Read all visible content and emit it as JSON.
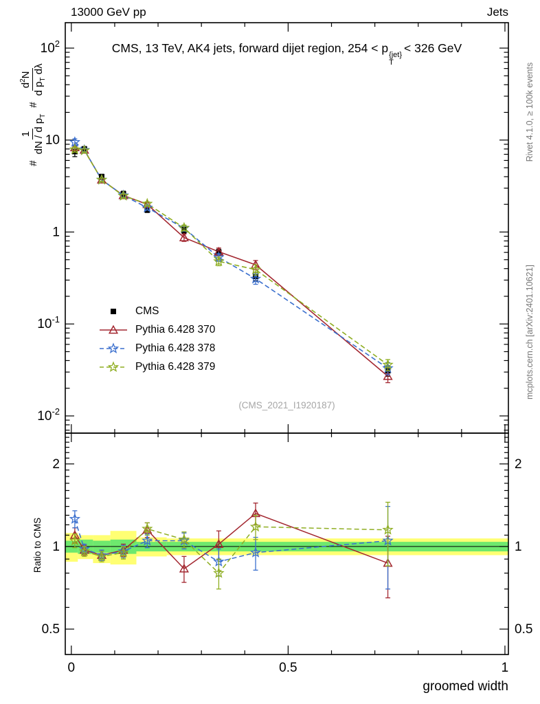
{
  "header": {
    "left": "13000 GeV pp",
    "right": "Jets"
  },
  "title": {
    "pre": "CMS, 13 TeV, AK4 jets, forward dijet region, 254 < p",
    "sup": "{jet}",
    "sub": "T",
    "post": "< 326 GeV"
  },
  "ylabel": {
    "hash1": "#",
    "frac1": {
      "num": "1",
      "den_pre": "dN / d p",
      "den_sub": "T"
    },
    "hash2": "#",
    "frac2": {
      "num_pre": "d",
      "num_sup": "2",
      "num_post": "N",
      "den_pre": "d p",
      "den_sub": "T",
      "den_post": " dλ"
    }
  },
  "ratio_ylabel": "Ratio to CMS",
  "xlabel": "groomed width",
  "watermark": "(CMS_2021_I1920187)",
  "captions": {
    "right_top": "Rivet 4.1.0, ≥ 100k events",
    "right_bottom": "mcplots.cern.ch [arXiv:2401.10621]"
  },
  "chart_data": {
    "type": "line",
    "title": "CMS, 13 TeV, AK4 jets, forward dijet region, 254 < pT{jet} < 326 GeV",
    "xlabel": "groomed width",
    "ylabel": "1/(dN/dpT) d2N/(dpT dlambda)",
    "xlim": [
      -0.014,
      1.008
    ],
    "x_major": [
      0,
      0.5,
      1
    ],
    "xtick_labels": [
      "0",
      "0.5",
      "1"
    ],
    "x_minor_step": 0.1,
    "main_ylog": true,
    "main_ylim": [
      0.0065,
      189
    ],
    "main_yticks": [
      100,
      10,
      1,
      0.1,
      0.01
    ],
    "ratio_ylog": true,
    "ratio_ylim": [
      0.404,
      2.59
    ],
    "ratio_yticks": [
      2,
      1,
      0.5
    ],
    "ratio_ref_line": 1,
    "x": [
      0.008,
      0.03,
      0.07,
      0.12,
      0.175,
      0.26,
      0.34,
      0.425,
      0.73
    ],
    "series": [
      {
        "name": "CMS",
        "color": "#000000",
        "marker": "square",
        "line": "none",
        "y": [
          7.5,
          8.0,
          4.0,
          2.6,
          1.75,
          1.05,
          0.6,
          0.33,
          0.031
        ],
        "yerr": [
          0.9,
          0.5,
          0.25,
          0.18,
          0.12,
          0.08,
          0.05,
          0.035,
          0.004
        ],
        "ratio": null,
        "ratio_err": null
      },
      {
        "name": "Pythia 6.428 370",
        "color": "#a32730",
        "marker": "triangle",
        "line": "solid",
        "y": [
          8.3,
          7.8,
          3.7,
          2.5,
          2.0,
          0.87,
          0.61,
          0.44,
          0.027
        ],
        "yerr": [
          0.5,
          0.3,
          0.15,
          0.12,
          0.1,
          0.08,
          0.06,
          0.05,
          0.004
        ],
        "ratio": [
          1.1,
          0.97,
          0.93,
          0.97,
          1.15,
          0.83,
          1.02,
          1.32,
          0.87
        ],
        "ratio_err": [
          0.07,
          0.04,
          0.04,
          0.05,
          0.07,
          0.09,
          0.12,
          0.12,
          0.22
        ]
      },
      {
        "name": "Pythia 6.428 378",
        "color": "#3a6fce",
        "marker": "star",
        "line": "dashed",
        "y": [
          9.5,
          7.8,
          3.7,
          2.5,
          1.84,
          1.1,
          0.53,
          0.31,
          0.033
        ],
        "yerr": [
          0.8,
          0.3,
          0.15,
          0.12,
          0.1,
          0.08,
          0.05,
          0.04,
          0.005
        ],
        "ratio": [
          1.26,
          0.98,
          0.93,
          0.96,
          1.05,
          1.05,
          0.88,
          0.95,
          1.05
        ],
        "ratio_err": [
          0.09,
          0.04,
          0.04,
          0.05,
          0.06,
          0.07,
          0.1,
          0.13,
          0.35
        ]
      },
      {
        "name": "Pythia 6.428 379",
        "color": "#8fae22",
        "marker": "star",
        "line": "dashed",
        "y": [
          7.9,
          7.7,
          3.7,
          2.47,
          2.03,
          1.11,
          0.48,
          0.39,
          0.036
        ],
        "yerr": [
          0.5,
          0.3,
          0.15,
          0.12,
          0.1,
          0.08,
          0.05,
          0.05,
          0.005
        ],
        "ratio": [
          1.05,
          0.96,
          0.92,
          0.95,
          1.16,
          1.06,
          0.8,
          1.18,
          1.15
        ],
        "ratio_err": [
          0.06,
          0.04,
          0.04,
          0.05,
          0.06,
          0.07,
          0.1,
          0.12,
          0.3
        ]
      }
    ],
    "ratio_bands": [
      {
        "x0": -0.014,
        "x1": 0.015,
        "ylo": 0.88,
        "yhi": 1.12,
        "glo": 0.95,
        "ghi": 1.05
      },
      {
        "x0": 0.015,
        "x1": 0.05,
        "ylo": 0.9,
        "yhi": 1.1,
        "glo": 0.94,
        "ghi": 1.06
      },
      {
        "x0": 0.05,
        "x1": 0.09,
        "ylo": 0.87,
        "yhi": 1.1,
        "glo": 0.95,
        "ghi": 1.05
      },
      {
        "x0": 0.09,
        "x1": 0.15,
        "ylo": 0.86,
        "yhi": 1.14,
        "glo": 0.94,
        "ghi": 1.06
      },
      {
        "x0": 0.15,
        "x1": 0.22,
        "ylo": 0.92,
        "yhi": 1.08,
        "glo": 0.96,
        "ghi": 1.04
      },
      {
        "x0": 0.22,
        "x1": 1.008,
        "ylo": 0.93,
        "yhi": 1.07,
        "glo": 0.96,
        "ghi": 1.04
      }
    ],
    "band_colors": {
      "outer": "#ffff73",
      "inner": "#6ee86e"
    }
  }
}
